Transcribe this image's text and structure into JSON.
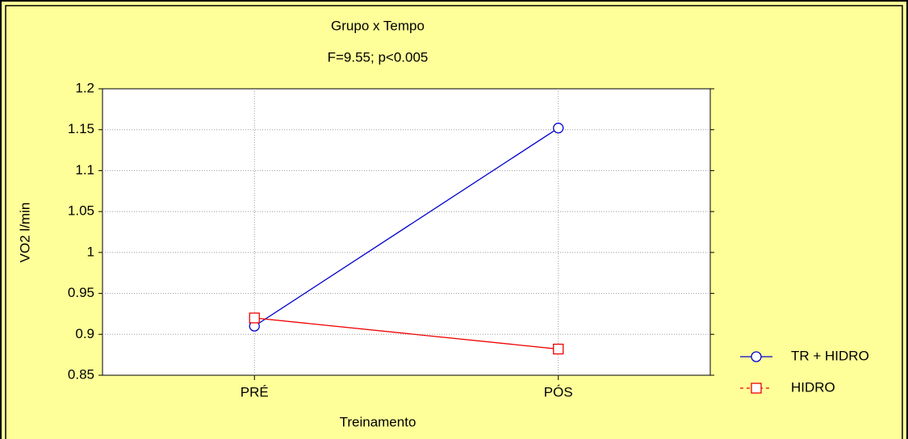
{
  "chart_data": {
    "type": "line",
    "title": "Grupo x Tempo",
    "subtitle": "F=9.55; p<0.005",
    "x_label": "Treinamento",
    "y_label": "VO2 l/min",
    "categories": [
      "PRÉ",
      "PÓS"
    ],
    "series": [
      {
        "name": "TR + HIDRO",
        "color": "#0000cc",
        "marker": "circle",
        "values": [
          0.91,
          1.152
        ]
      },
      {
        "name": "HIDRO",
        "color": "#ee0000",
        "marker": "square",
        "values": [
          0.92,
          0.882
        ]
      }
    ],
    "ylim": [
      0.85,
      1.2
    ],
    "yticks": [
      0.85,
      0.9,
      0.95,
      1,
      1.05,
      1.1,
      1.15,
      1.2
    ],
    "grid": true
  }
}
